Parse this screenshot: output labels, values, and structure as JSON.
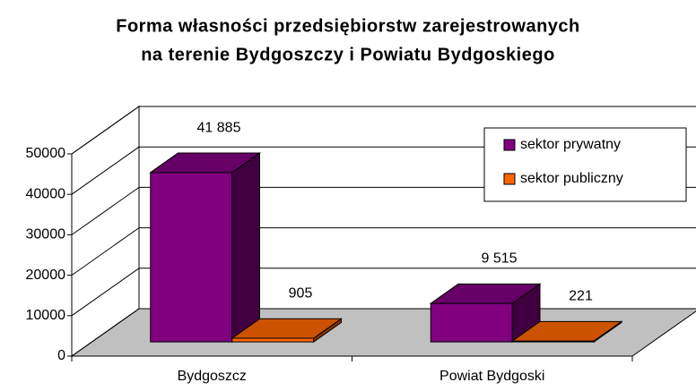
{
  "chart_data": {
    "type": "bar3d",
    "title": [
      "Forma własności przedsiębiorstw zarejestrowanych",
      "na terenie Bydgoszczy i Powiatu Bydgoskiego"
    ],
    "categories": [
      "Bydgoszcz",
      "Powiat Bydgoski"
    ],
    "series": [
      {
        "name": "sektor prywatny",
        "color": "#800080",
        "values": [
          41885,
          9515
        ],
        "value_labels": [
          "41 885",
          "9 515"
        ]
      },
      {
        "name": "sektor publiczny",
        "color": "#ff6600",
        "values": [
          905,
          221
        ],
        "value_labels": [
          "905",
          "221"
        ]
      }
    ],
    "ylim": [
      0,
      50000
    ],
    "yticks": [
      0,
      10000,
      20000,
      30000,
      40000,
      50000
    ],
    "grid": true,
    "legend": "top-right"
  }
}
